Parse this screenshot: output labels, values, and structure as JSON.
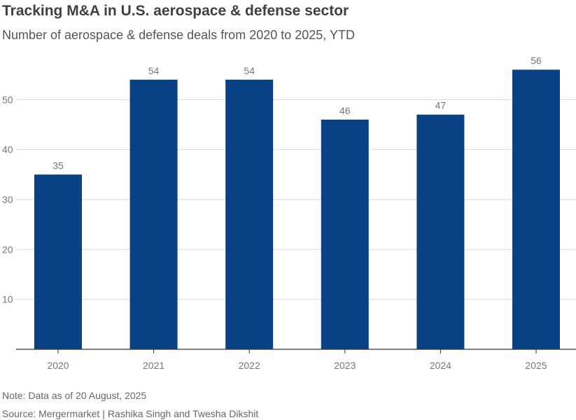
{
  "colors": {
    "bar": "#0a4184",
    "grid": "#d9d9d9",
    "axis": "#333333",
    "tick_text": "#777777",
    "label_text": "#777777"
  },
  "chart_data": {
    "type": "bar",
    "title": "Tracking M&A in U.S. aerospace & defense sector",
    "subtitle": "Number of aerospace & defense deals from 2020 to 2025, YTD",
    "categories": [
      "2020",
      "2021",
      "2022",
      "2023",
      "2024",
      "2025"
    ],
    "values": [
      35,
      54,
      54,
      46,
      47,
      56
    ],
    "ylim": [
      0,
      60
    ],
    "yticks": [
      10,
      20,
      30,
      40,
      50
    ],
    "xlabel": "",
    "ylabel": "",
    "grid": true,
    "legend": "none"
  },
  "footer": {
    "note": "Note: Data as of 20 August, 2025",
    "source": "Source: Mergermarket",
    "separator": "|",
    "authors": "Rashika Singh and Twesha Dikshit"
  }
}
